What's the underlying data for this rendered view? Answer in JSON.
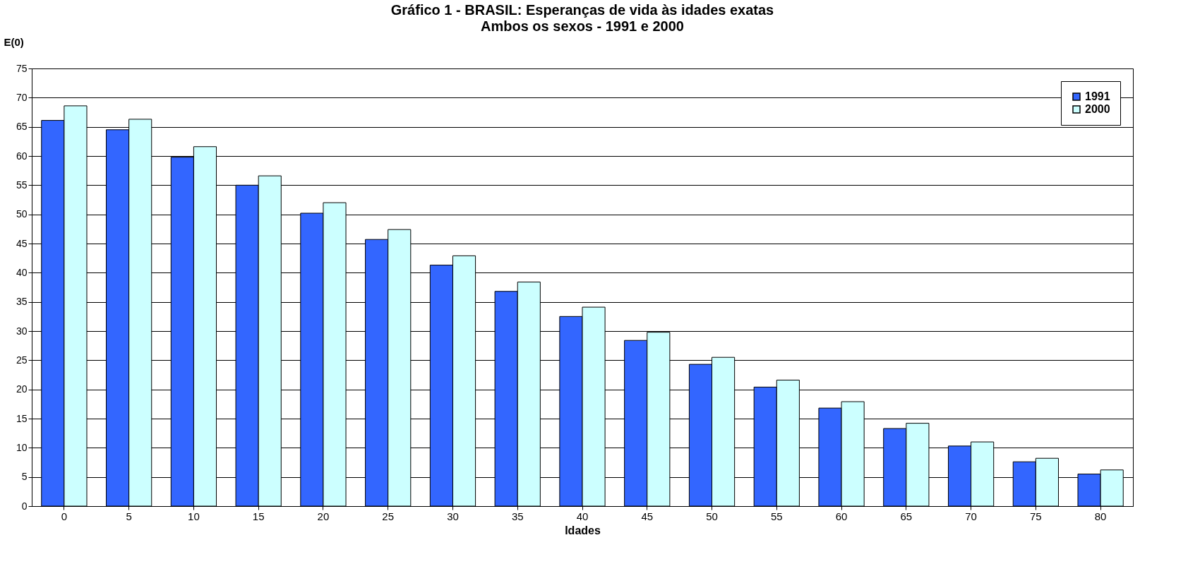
{
  "chart_data": {
    "type": "bar",
    "title": "Gráfico 1 - BRASIL: Esperanças de vida às idades exatas",
    "subtitle": "Ambos os sexos - 1991 e 2000",
    "xlabel": "Idades",
    "ylabel": "E(0)",
    "categories": [
      "0",
      "5",
      "10",
      "15",
      "20",
      "25",
      "30",
      "35",
      "40",
      "45",
      "50",
      "55",
      "60",
      "65",
      "70",
      "75",
      "80"
    ],
    "series": [
      {
        "name": "1991",
        "color": "#3366ff",
        "values": [
          66.1,
          64.5,
          59.8,
          55.0,
          50.2,
          45.7,
          41.3,
          36.8,
          32.5,
          28.4,
          24.3,
          20.4,
          16.8,
          13.3,
          10.3,
          7.6,
          5.5
        ]
      },
      {
        "name": "2000",
        "color": "#ccffff",
        "values": [
          68.6,
          66.3,
          61.6,
          56.6,
          52.0,
          47.4,
          42.9,
          38.4,
          34.1,
          29.8,
          25.5,
          21.6,
          17.9,
          14.2,
          11.0,
          8.2,
          6.2
        ]
      }
    ],
    "ylim": [
      0,
      75
    ],
    "yticks": [
      0,
      5,
      10,
      15,
      20,
      25,
      30,
      35,
      40,
      45,
      50,
      55,
      60,
      65,
      70,
      75
    ],
    "grid": "y",
    "legend": "top right"
  }
}
